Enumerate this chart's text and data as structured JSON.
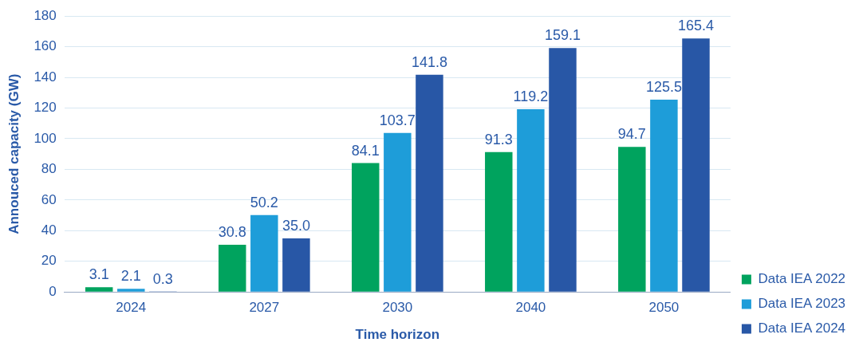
{
  "chart_data": {
    "type": "bar",
    "xlabel": "Time horizon",
    "ylabel": "Annouced capacity (GW)",
    "categories": [
      "2024",
      "2027",
      "2030",
      "2040",
      "2050"
    ],
    "series": [
      {
        "name": "Data IEA 2022",
        "color": "#00a35e",
        "values": [
          3.1,
          30.8,
          84.1,
          91.3,
          94.7
        ],
        "value_labels": [
          "3.1",
          "30.8",
          "84.1",
          "91.3",
          "94.7"
        ]
      },
      {
        "name": "Data IEA 2023",
        "color": "#1e9dd9",
        "values": [
          2.1,
          50.2,
          103.7,
          119.2,
          125.5
        ],
        "value_labels": [
          "2.1",
          "50.2",
          "103.7",
          "119.2",
          "125.5"
        ]
      },
      {
        "name": "Data IEA 2024",
        "color": "#2857a6",
        "values": [
          0.3,
          35.0,
          141.8,
          159.1,
          165.4
        ],
        "value_labels": [
          "0.3",
          "35.0",
          "141.8",
          "159.1",
          "165.4"
        ]
      }
    ],
    "ylim": [
      0,
      180
    ],
    "yticks": [
      0,
      20,
      40,
      60,
      80,
      100,
      120,
      140,
      160,
      180
    ],
    "grid": "y",
    "legend": "bottom right"
  }
}
